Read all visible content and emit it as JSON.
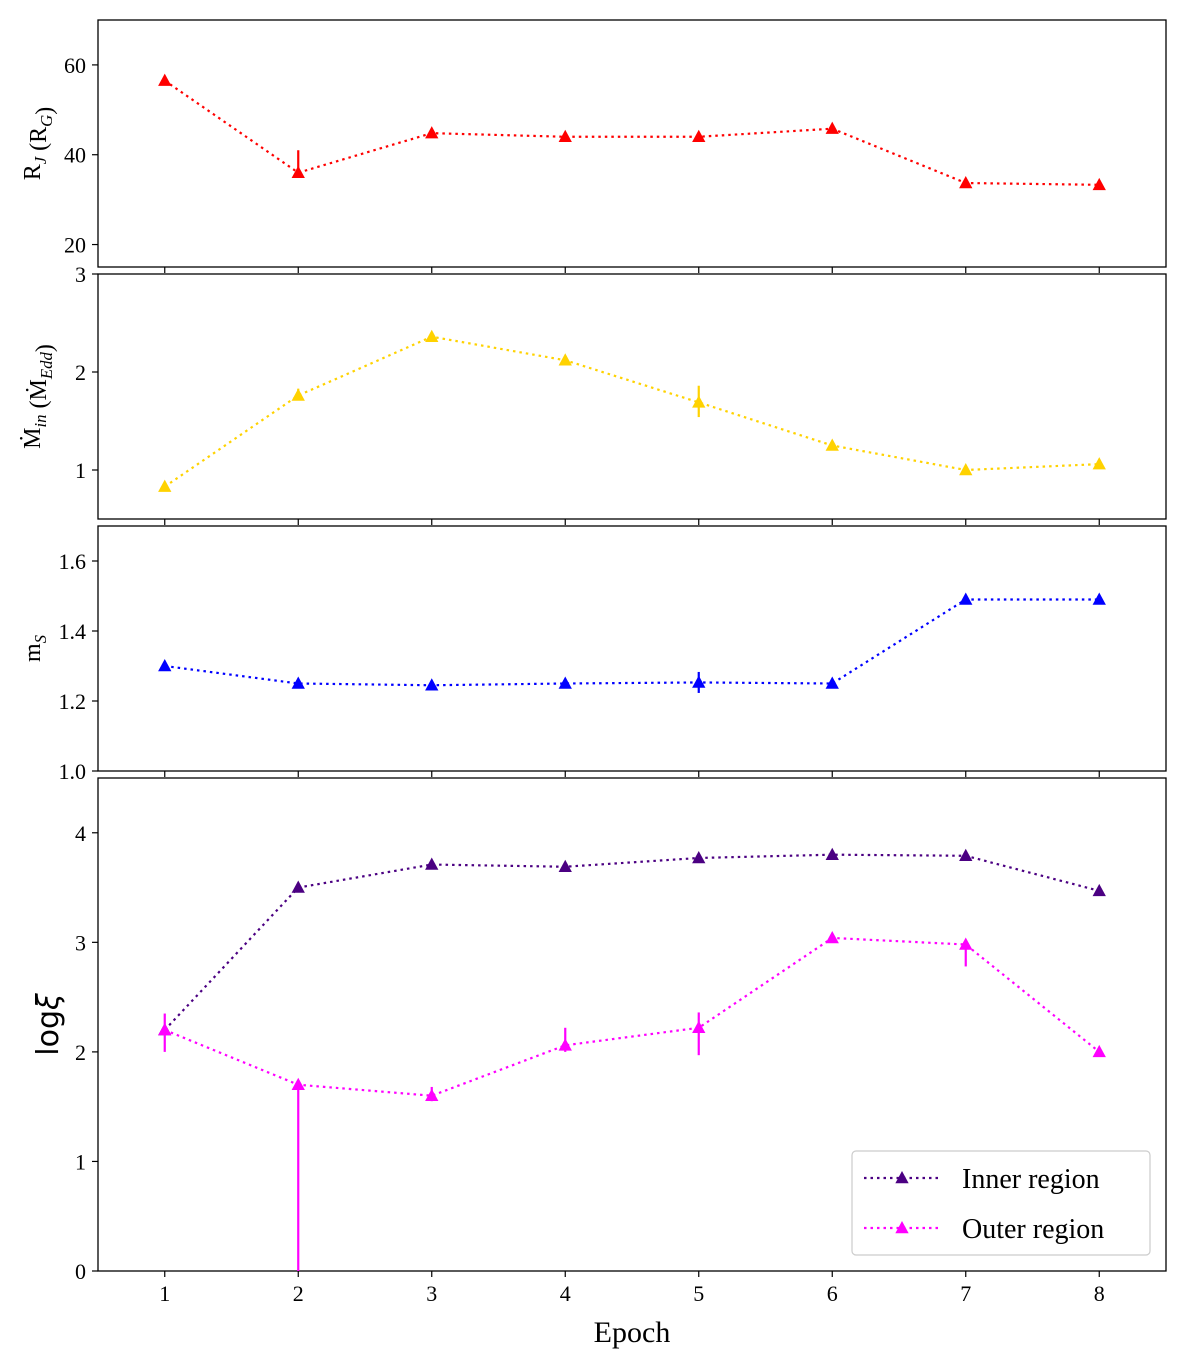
{
  "chart_data": {
    "type": "line",
    "xlabel": "Epoch",
    "x_ticks": [
      1,
      2,
      3,
      4,
      5,
      6,
      7,
      8
    ],
    "x_tick_labels": [
      "1",
      "2",
      "3",
      "4",
      "5",
      "6",
      "7",
      "8"
    ],
    "xlim": [
      0.5,
      8.5
    ],
    "panels": [
      {
        "id": "rj",
        "ylabel_main": "R",
        "ylabel_sub": "J",
        "ylabel_mid": " (R",
        "ylabel_sub2": "G",
        "ylabel_end": ")",
        "ylim": [
          15,
          70
        ],
        "yticks": [
          20,
          40,
          60
        ],
        "ytick_labels": [
          "20",
          "40",
          "60"
        ],
        "series": [
          {
            "color": "#ff0000",
            "x": [
              1,
              2,
              3,
              4,
              5,
              6,
              7,
              8
            ],
            "y": [
              56.5,
              36.0,
              44.8,
              44.0,
              44.0,
              45.8,
              33.7,
              33.3
            ],
            "yerr_up": [
              0.5,
              5.0,
              0.4,
              0.4,
              0.4,
              0.4,
              0.3,
              0.3
            ],
            "yerr_down": [
              0.5,
              0.5,
              0.4,
              0.4,
              0.4,
              0.4,
              0.3,
              0.3
            ]
          }
        ]
      },
      {
        "id": "mdot",
        "ylabel_main": "Ṁ",
        "ylabel_sub": "in",
        "ylabel_mid": " (Ṁ",
        "ylabel_sub2": "Edd",
        "ylabel_end": ")",
        "ylim": [
          0.5,
          3.0
        ],
        "yticks": [
          1,
          2,
          3
        ],
        "ytick_labels": [
          "1",
          "2",
          "3"
        ],
        "series": [
          {
            "color": "#ffd200",
            "x": [
              1,
              2,
              3,
              4,
              5,
              6,
              7,
              8
            ],
            "y": [
              0.83,
              1.76,
              2.36,
              2.12,
              1.69,
              1.25,
              1.0,
              1.06
            ],
            "yerr_up": [
              0.02,
              0.07,
              0.03,
              0.03,
              0.17,
              0.03,
              0.02,
              0.02
            ],
            "yerr_down": [
              0.02,
              0.03,
              0.03,
              0.03,
              0.15,
              0.03,
              0.02,
              0.02
            ]
          }
        ]
      },
      {
        "id": "ms",
        "ylabel_main": "m",
        "ylabel_sub": "S",
        "ylim": [
          1.0,
          1.7
        ],
        "yticks": [
          1.0,
          1.2,
          1.4,
          1.6
        ],
        "ytick_labels": [
          "1.0",
          "1.2",
          "1.4",
          "1.6"
        ],
        "series": [
          {
            "color": "#0000ff",
            "x": [
              1,
              2,
              3,
              4,
              5,
              6,
              7,
              8
            ],
            "y": [
              1.3,
              1.25,
              1.245,
              1.25,
              1.253,
              1.25,
              1.49,
              1.49
            ],
            "yerr_up": [
              0.005,
              0.005,
              0.005,
              0.005,
              0.03,
              0.005,
              0.005,
              0.005
            ],
            "yerr_down": [
              0.005,
              0.005,
              0.005,
              0.005,
              0.03,
              0.005,
              0.005,
              0.005
            ]
          }
        ]
      },
      {
        "id": "logxi",
        "ylabel_main": "log",
        "ylabel_greek": "ξ",
        "ylim": [
          0,
          4.5
        ],
        "yticks": [
          0,
          1,
          2,
          3,
          4
        ],
        "ytick_labels": [
          "0",
          "1",
          "2",
          "3",
          "4"
        ],
        "legend": {
          "placement": "lower-right"
        },
        "series": [
          {
            "name": "Inner region",
            "color": "#4b0082",
            "x": [
              1,
              2,
              3,
              4,
              5,
              6,
              7,
              8
            ],
            "y": [
              2.2,
              3.5,
              3.71,
              3.69,
              3.77,
              3.8,
              3.79,
              3.47
            ],
            "yerr_up": [
              0.03,
              0.03,
              0.03,
              0.03,
              0.03,
              0.03,
              0.03,
              0.03
            ],
            "yerr_down": [
              0.03,
              0.03,
              0.03,
              0.03,
              0.03,
              0.03,
              0.03,
              0.03
            ]
          },
          {
            "name": "Outer region",
            "color": "#ff00ff",
            "x": [
              1,
              2,
              3,
              4,
              5,
              6,
              7,
              8
            ],
            "y": [
              2.2,
              1.7,
              1.6,
              2.06,
              2.22,
              3.04,
              2.98,
              2.0
            ],
            "yerr_up": [
              0.15,
              0.03,
              0.08,
              0.16,
              0.14,
              0.03,
              0.04,
              0.03
            ],
            "yerr_down": [
              0.2,
              1.7,
              0.05,
              0.06,
              0.25,
              0.03,
              0.2,
              0.03
            ]
          }
        ]
      }
    ]
  }
}
